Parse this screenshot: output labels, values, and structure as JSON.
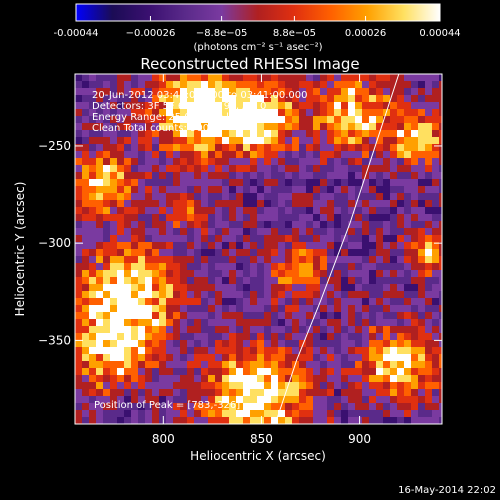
{
  "chart_data": {
    "type": "heatmap",
    "title": "Reconstructed RHESSI Image",
    "xlabel": "Heliocentric X (arcsec)",
    "ylabel": "Heliocentric Y (arcsec)",
    "xlim": [
      755,
      942
    ],
    "ylim": [
      -393,
      -213
    ],
    "x_ticks": [
      800,
      850,
      900
    ],
    "y_ticks": [
      -250,
      -300,
      -350
    ],
    "colorbar": {
      "range": [
        -0.00044,
        0.00044
      ],
      "tick_values": [
        -0.00044,
        -0.00026,
        -8.8e-05,
        8.8e-05,
        0.00026,
        0.00044
      ],
      "tick_labels": [
        "-0.00044",
        "−0.00026",
        "−8.8e−05",
        "8.8e−05",
        "0.00026",
        "0.00044"
      ],
      "units": "(photons cm⁻² s⁻¹ asec⁻²)"
    },
    "annotations": [
      "20-Jun-2012 03:40:00.000 to 03:41:00.000",
      "Detectors: 3F 5F 6F 7F 8F 9F, Att 0",
      "Energy Range: 25.0 - 50.0 keV",
      "Clean    Total counts: 900.",
      "Position of Peak = [783,-326]"
    ],
    "limb_points": [
      [
        920,
        -213
      ],
      [
        908,
        -250
      ],
      [
        895,
        -290
      ],
      [
        880,
        -330
      ],
      [
        868,
        -360
      ],
      [
        857,
        -393
      ]
    ],
    "colormap": [
      "#0000ff",
      "#1b0c55",
      "#3a1070",
      "#5a2a8a",
      "#7a3aa0",
      "#b02020",
      "#e03010",
      "#ff6000",
      "#ffa000",
      "#ffe060",
      "#ffffff"
    ]
  },
  "footer": {
    "timestamp": "16-May-2014 22:02"
  }
}
